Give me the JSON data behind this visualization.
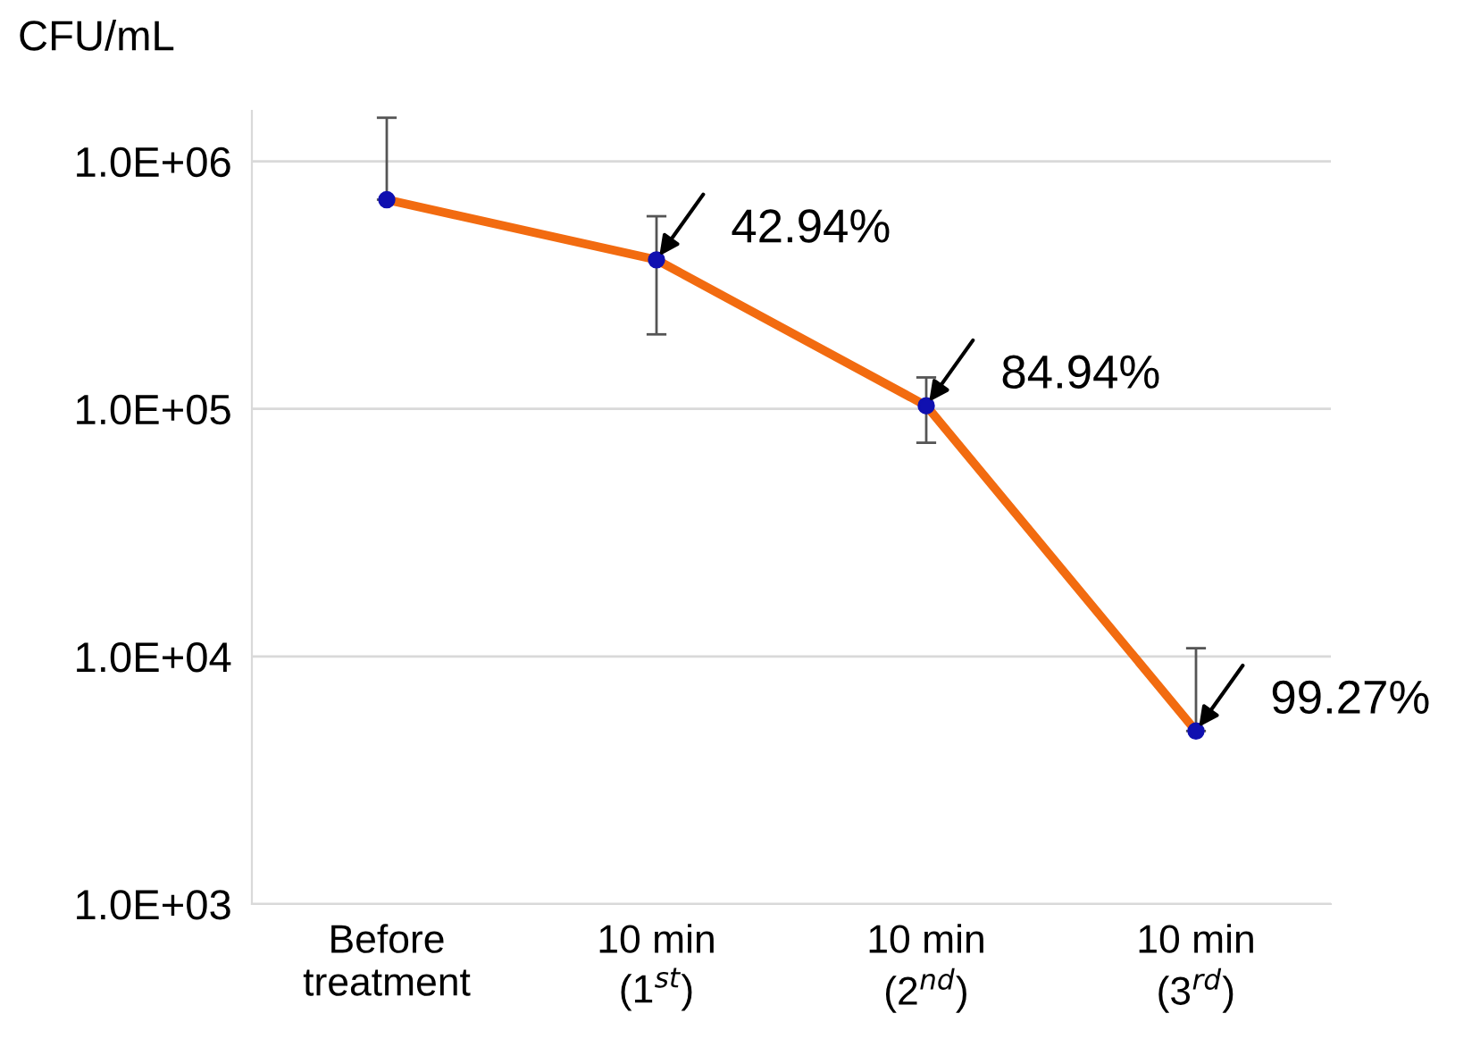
{
  "chart_data": {
    "type": "line",
    "ylabel": "CFU/mL",
    "categories": [
      "Before\ntreatment",
      "10 min\n(1$^{st}$)",
      "10 min\n(2$^{nd}$)",
      "10 min\n(3$^{rd}$)"
    ],
    "series": [
      {
        "color": "#f26b10",
        "values": [
          700000,
          400000,
          103000,
          5000
        ],
        "errors": [
          [
            700000,
            1500000
          ],
          [
            200000,
            600000
          ],
          [
            73000,
            134000
          ],
          [
            5000,
            10800
          ]
        ]
      }
    ],
    "marker": "circle",
    "line_style": "solid",
    "log": "y",
    "ylim": [
      1000,
      1600000
    ],
    "yticks": [
      {
        "value": 1000,
        "label": "1.0E+03"
      },
      {
        "value": 10000,
        "label": "1.0E+04"
      },
      {
        "value": 100000,
        "label": "1.0E+05"
      },
      {
        "value": 1000000,
        "label": "1.0E+06"
      }
    ],
    "grid": "y",
    "legend": false,
    "annotations": [
      {
        "text": "42.94%",
        "x": "10 min\n(1$^{st}$)",
        "y": 400000
      },
      {
        "text": "84.94%",
        "x": "10 min\n(2$^{nd}$)",
        "y": 103000
      },
      {
        "text": "99.27%",
        "x": "10 min\n(3$^{rd}$)",
        "y": 5000
      }
    ]
  }
}
